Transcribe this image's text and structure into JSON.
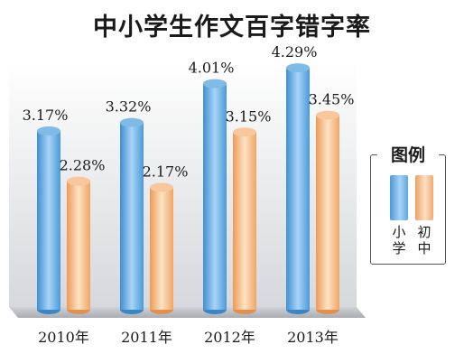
{
  "chart_data": {
    "type": "bar",
    "title": "中小学生作文百字错字率",
    "categories": [
      "2010年",
      "2011年",
      "2012年",
      "2013年"
    ],
    "series": [
      {
        "name": "小学",
        "values": [
          3.17,
          3.32,
          4.01,
          4.29
        ],
        "labels": [
          "3.17%",
          "3.32%",
          "4.01%",
          "4.29%"
        ],
        "color": "#5aa6e0"
      },
      {
        "name": "初中",
        "values": [
          2.28,
          2.17,
          3.15,
          3.45
        ],
        "labels": [
          "2.28%",
          "2.17%",
          "3.15%",
          "3.45%"
        ],
        "color": "#f5b27a"
      }
    ],
    "ylim": [
      0,
      4.5
    ],
    "grid": false,
    "legend": {
      "title": "图例",
      "position": "right"
    }
  }
}
